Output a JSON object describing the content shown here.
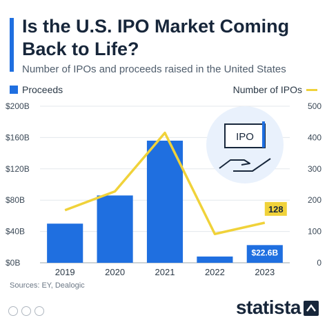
{
  "header": {
    "title": "Is the U.S. IPO Market Coming Back to Life?",
    "subtitle": "Number of IPOs and proceeds raised in the United States"
  },
  "legend": {
    "bars_label": "Proceeds",
    "line_label": "Number of IPOs"
  },
  "colors": {
    "bar": "#1f6fe0",
    "line": "#f0d23a",
    "accent": "#1f6fe0"
  },
  "chart_data": {
    "type": "bar",
    "categories": [
      "2019",
      "2020",
      "2021",
      "2022",
      "2023"
    ],
    "series": [
      {
        "name": "Proceeds",
        "type": "bar",
        "axis": "left",
        "values": [
          50,
          86,
          156,
          8,
          22.6
        ],
        "data_labels": [
          "",
          "",
          "",
          "",
          "$22.6B"
        ]
      },
      {
        "name": "Number of IPOs",
        "type": "line",
        "axis": "right",
        "values": [
          168,
          228,
          415,
          92,
          128
        ],
        "data_labels": [
          "",
          "",
          "",
          "",
          "128"
        ]
      }
    ],
    "y_left": {
      "min": 0,
      "max": 200,
      "ticks": [
        "$0B",
        "$40B",
        "$80B",
        "$120B",
        "$160B",
        "$200B"
      ],
      "tick_values": [
        0,
        40,
        80,
        120,
        160,
        200
      ]
    },
    "y_right": {
      "min": 0,
      "max": 500,
      "ticks": [
        "0",
        "100",
        "200",
        "300",
        "400",
        "500"
      ],
      "tick_values": [
        0,
        100,
        200,
        300,
        400,
        500
      ]
    },
    "grid": true,
    "legend_position": "top"
  },
  "illustration": {
    "label": "IPO",
    "icon": "hand-holding-ipo-card-icon"
  },
  "footer": {
    "source": "Sources: EY, Dealogic",
    "brand": "statista"
  }
}
